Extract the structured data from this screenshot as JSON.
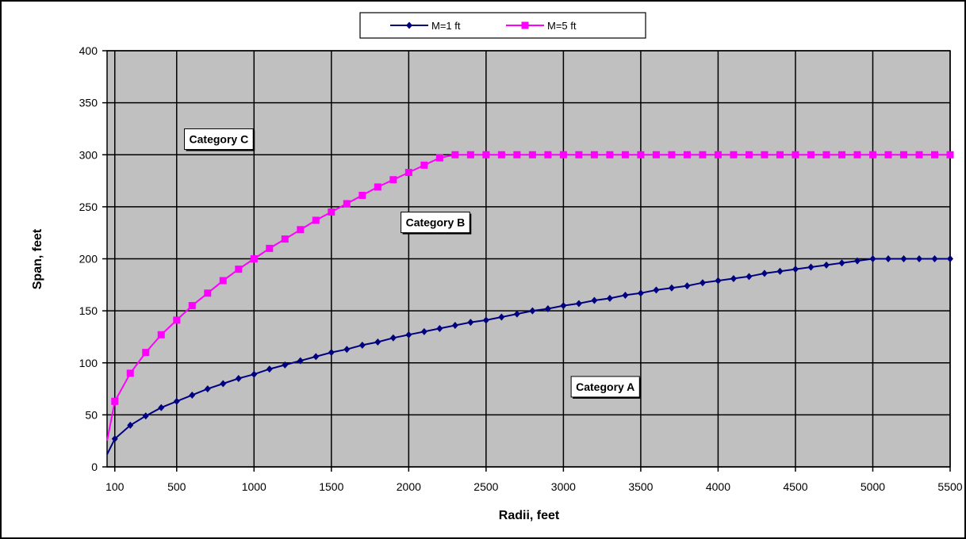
{
  "chart_data": {
    "type": "line",
    "title": "",
    "xlabel": "Radii, feet",
    "ylabel": "Span, feet",
    "xlim": [
      100,
      5500
    ],
    "ylim": [
      0,
      400
    ],
    "x_ticks": [
      100,
      500,
      1000,
      1500,
      2000,
      2500,
      3000,
      3500,
      4000,
      4500,
      5000,
      5500
    ],
    "y_ticks": [
      0,
      50,
      100,
      150,
      200,
      250,
      300,
      350,
      400
    ],
    "grid": true,
    "plot_background": "#c0c0c0",
    "legend_position": "top-center",
    "series": [
      {
        "name": "M=1 ft",
        "color": "#000080",
        "marker": "diamond",
        "points": [
          [
            50,
            12
          ],
          [
            100,
            27
          ],
          [
            200,
            40
          ],
          [
            300,
            49
          ],
          [
            400,
            57
          ],
          [
            500,
            63
          ],
          [
            600,
            69
          ],
          [
            700,
            75
          ],
          [
            800,
            80
          ],
          [
            900,
            85
          ],
          [
            1000,
            89
          ],
          [
            1100,
            94
          ],
          [
            1200,
            98
          ],
          [
            1300,
            102
          ],
          [
            1400,
            106
          ],
          [
            1500,
            110
          ],
          [
            1600,
            113
          ],
          [
            1700,
            117
          ],
          [
            1800,
            120
          ],
          [
            1900,
            124
          ],
          [
            2000,
            127
          ],
          [
            2100,
            130
          ],
          [
            2200,
            133
          ],
          [
            2300,
            136
          ],
          [
            2400,
            139
          ],
          [
            2500,
            141
          ],
          [
            2600,
            144
          ],
          [
            2700,
            147
          ],
          [
            2800,
            150
          ],
          [
            2900,
            152
          ],
          [
            3000,
            155
          ],
          [
            3100,
            157
          ],
          [
            3200,
            160
          ],
          [
            3300,
            162
          ],
          [
            3400,
            165
          ],
          [
            3500,
            167
          ],
          [
            3600,
            170
          ],
          [
            3700,
            172
          ],
          [
            3800,
            174
          ],
          [
            3900,
            177
          ],
          [
            4000,
            179
          ],
          [
            4100,
            181
          ],
          [
            4200,
            183
          ],
          [
            4300,
            186
          ],
          [
            4400,
            188
          ],
          [
            4500,
            190
          ],
          [
            4600,
            192
          ],
          [
            4700,
            194
          ],
          [
            4800,
            196
          ],
          [
            4900,
            198
          ],
          [
            5000,
            200
          ],
          [
            5100,
            200
          ],
          [
            5200,
            200
          ],
          [
            5300,
            200
          ],
          [
            5400,
            200
          ],
          [
            5500,
            200
          ]
        ]
      },
      {
        "name": "M=5 ft",
        "color": "#ff00ff",
        "marker": "square",
        "points": [
          [
            50,
            25
          ],
          [
            100,
            63
          ],
          [
            200,
            90
          ],
          [
            300,
            110
          ],
          [
            400,
            127
          ],
          [
            500,
            141
          ],
          [
            600,
            155
          ],
          [
            700,
            167
          ],
          [
            800,
            179
          ],
          [
            900,
            190
          ],
          [
            1000,
            200
          ],
          [
            1100,
            210
          ],
          [
            1200,
            219
          ],
          [
            1300,
            228
          ],
          [
            1400,
            237
          ],
          [
            1500,
            245
          ],
          [
            1600,
            253
          ],
          [
            1700,
            261
          ],
          [
            1800,
            269
          ],
          [
            1900,
            276
          ],
          [
            2000,
            283
          ],
          [
            2100,
            290
          ],
          [
            2200,
            297
          ],
          [
            2300,
            300
          ],
          [
            2400,
            300
          ],
          [
            2500,
            300
          ],
          [
            2600,
            300
          ],
          [
            2700,
            300
          ],
          [
            2800,
            300
          ],
          [
            2900,
            300
          ],
          [
            3000,
            300
          ],
          [
            3100,
            300
          ],
          [
            3200,
            300
          ],
          [
            3300,
            300
          ],
          [
            3400,
            300
          ],
          [
            3500,
            300
          ],
          [
            3600,
            300
          ],
          [
            3700,
            300
          ],
          [
            3800,
            300
          ],
          [
            3900,
            300
          ],
          [
            4000,
            300
          ],
          [
            4100,
            300
          ],
          [
            4200,
            300
          ],
          [
            4300,
            300
          ],
          [
            4400,
            300
          ],
          [
            4500,
            300
          ],
          [
            4600,
            300
          ],
          [
            4700,
            300
          ],
          [
            4800,
            300
          ],
          [
            4900,
            300
          ],
          [
            5000,
            300
          ],
          [
            5100,
            300
          ],
          [
            5200,
            300
          ],
          [
            5300,
            300
          ],
          [
            5400,
            300
          ],
          [
            5500,
            300
          ]
        ]
      }
    ],
    "annotations": [
      {
        "text": "Category C",
        "x": 550,
        "y": 315
      },
      {
        "text": "Category B",
        "x": 1950,
        "y": 235
      },
      {
        "text": "Category  A",
        "x": 3050,
        "y": 77
      }
    ]
  }
}
